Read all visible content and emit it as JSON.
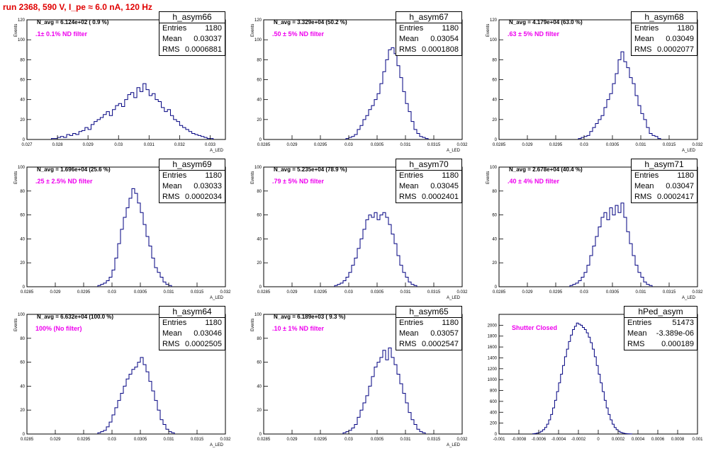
{
  "run_title": "run 2368,   590 V, I_pe ≈ 6.0 nA, 120 Hz",
  "chart_data": [
    {
      "type": "bar",
      "name": "h_asym66",
      "entries": "1180",
      "mean": "0.03037",
      "rms": "0.0006881",
      "navg": "N_avg = 6.124e+02 ( 0.9 %)",
      "filter": ".1± 0.1% ND filter",
      "xlabel": "A_LED",
      "ylabel": "Events",
      "xlim": [
        0.027,
        0.0335
      ],
      "ylim": [
        0,
        120
      ],
      "xticks": [
        0.027,
        0.028,
        0.029,
        0.03,
        0.031,
        0.032,
        0.033
      ],
      "xtick_labels": [
        "0.027",
        "0.028",
        "0.029",
        "0.03",
        "0.031",
        "0.032",
        "0.033"
      ],
      "yticks": [
        0,
        20,
        40,
        60,
        80,
        100,
        120
      ],
      "bins": {
        "start": 0.0278,
        "width": 0.0001,
        "counts": [
          1,
          1,
          2,
          3,
          2,
          5,
          4,
          6,
          5,
          8,
          9,
          12,
          10,
          15,
          18,
          20,
          22,
          25,
          28,
          24,
          30,
          34,
          36,
          33,
          40,
          45,
          47,
          42,
          52,
          48,
          56,
          50,
          44,
          46,
          40,
          38,
          32,
          28,
          30,
          24,
          20,
          18,
          14,
          12,
          10,
          8,
          6,
          5,
          4,
          3,
          2,
          1,
          1
        ]
      }
    },
    {
      "type": "bar",
      "name": "h_asym67",
      "entries": "1180",
      "mean": "0.03054",
      "rms": "0.0001808",
      "navg": "N_avg = 3.329e+04 (50.2 %)",
      "filter": ".50 ± 5% ND filter",
      "xlabel": "A_LED",
      "ylabel": "Events",
      "xlim": [
        0.0285,
        0.032
      ],
      "ylim": [
        0,
        120
      ],
      "xticks": [
        0.0285,
        0.029,
        0.0295,
        0.03,
        0.0305,
        0.031,
        0.0315,
        0.032
      ],
      "xtick_labels": [
        "0.0285",
        "0.029",
        "0.0295",
        "0.03",
        "0.0305",
        "0.031",
        "0.0315",
        "0.032"
      ],
      "yticks": [
        0,
        20,
        40,
        60,
        80,
        100,
        120
      ],
      "bins": {
        "start": 0.02995,
        "width": 5e-05,
        "counts": [
          1,
          2,
          3,
          5,
          10,
          14,
          20,
          24,
          30,
          34,
          40,
          46,
          56,
          68,
          80,
          90,
          92,
          86,
          74,
          62,
          48,
          36,
          28,
          18,
          10,
          6,
          3,
          2,
          1
        ]
      }
    },
    {
      "type": "bar",
      "name": "h_asym68",
      "entries": "1180",
      "mean": "0.03049",
      "rms": "0.0002077",
      "navg": "N_avg = 4.179e+04 (63.0 %)",
      "filter": ".63 ± 5% ND filter",
      "xlabel": "A_LED",
      "ylabel": "Events",
      "xlim": [
        0.0285,
        0.032
      ],
      "ylim": [
        0,
        120
      ],
      "xticks": [
        0.0285,
        0.029,
        0.0295,
        0.03,
        0.0305,
        0.031,
        0.0315,
        0.032
      ],
      "xtick_labels": [
        "0.0285",
        "0.029",
        "0.0295",
        "0.03",
        "0.0305",
        "0.031",
        "0.0315",
        "0.032"
      ],
      "yticks": [
        0,
        20,
        40,
        60,
        80,
        100,
        120
      ],
      "bins": {
        "start": 0.0299,
        "width": 5e-05,
        "counts": [
          1,
          2,
          3,
          4,
          8,
          12,
          16,
          20,
          24,
          32,
          40,
          46,
          56,
          66,
          80,
          88,
          78,
          72,
          62,
          56,
          44,
          34,
          26,
          20,
          12,
          6,
          4,
          3,
          1
        ]
      }
    },
    {
      "type": "bar",
      "name": "h_asym69",
      "entries": "1180",
      "mean": "0.03033",
      "rms": "0.0002034",
      "navg": "N_avg = 1.696e+04 (25.6 %)",
      "filter": ".25 ± 2.5% ND filter",
      "xlabel": "A_LED",
      "ylabel": "Events",
      "xlim": [
        0.0285,
        0.032
      ],
      "ylim": [
        0,
        100
      ],
      "xticks": [
        0.0285,
        0.029,
        0.0295,
        0.03,
        0.0305,
        0.031,
        0.0315,
        0.032
      ],
      "xtick_labels": [
        "0.0285",
        "0.029",
        "0.0295",
        "0.03",
        "0.0305",
        "0.031",
        "0.0315",
        "0.032"
      ],
      "yticks": [
        0,
        20,
        40,
        60,
        80,
        100
      ],
      "bins": {
        "start": 0.02975,
        "width": 5e-05,
        "counts": [
          1,
          2,
          3,
          5,
          8,
          14,
          24,
          36,
          48,
          58,
          66,
          74,
          82,
          78,
          70,
          62,
          52,
          42,
          34,
          24,
          16,
          12,
          8,
          4,
          2,
          1
        ]
      }
    },
    {
      "type": "bar",
      "name": "h_asym70",
      "entries": "1180",
      "mean": "0.03045",
      "rms": "0.0002401",
      "navg": "N_avg = 5.235e+04 (78.9 %)",
      "filter": ".79 ± 5% ND filter",
      "xlabel": "A_LED",
      "ylabel": "Events",
      "xlim": [
        0.0285,
        0.032
      ],
      "ylim": [
        0,
        100
      ],
      "xticks": [
        0.0285,
        0.029,
        0.0295,
        0.03,
        0.0305,
        0.031,
        0.0315,
        0.032
      ],
      "xtick_labels": [
        "0.0285",
        "0.029",
        "0.0295",
        "0.03",
        "0.0305",
        "0.031",
        "0.0315",
        "0.032"
      ],
      "yticks": [
        0,
        20,
        40,
        60,
        80,
        100
      ],
      "bins": {
        "start": 0.02975,
        "width": 5e-05,
        "counts": [
          1,
          2,
          3,
          5,
          8,
          12,
          18,
          24,
          32,
          40,
          48,
          56,
          60,
          58,
          62,
          56,
          60,
          62,
          58,
          52,
          44,
          36,
          26,
          18,
          12,
          8,
          4,
          2,
          1
        ]
      }
    },
    {
      "type": "bar",
      "name": "h_asym71",
      "entries": "1180",
      "mean": "0.03047",
      "rms": "0.0002417",
      "navg": "N_avg = 2.678e+04 (40.4 %)",
      "filter": ".40 ± 4% ND filter",
      "xlabel": "A_LED",
      "ylabel": "Events",
      "xlim": [
        0.0285,
        0.032
      ],
      "ylim": [
        0,
        100
      ],
      "xticks": [
        0.0285,
        0.029,
        0.0295,
        0.03,
        0.0305,
        0.031,
        0.0315,
        0.032
      ],
      "xtick_labels": [
        "0.0285",
        "0.029",
        "0.0295",
        "0.03",
        "0.0305",
        "0.031",
        "0.0315",
        "0.032"
      ],
      "yticks": [
        0,
        20,
        40,
        60,
        80,
        100
      ],
      "bins": {
        "start": 0.02975,
        "width": 5e-05,
        "counts": [
          1,
          2,
          3,
          5,
          8,
          12,
          18,
          26,
          34,
          42,
          50,
          58,
          62,
          56,
          66,
          60,
          68,
          62,
          70,
          58,
          46,
          36,
          26,
          18,
          12,
          8,
          4,
          2,
          1
        ]
      }
    },
    {
      "type": "bar",
      "name": "h_asym64",
      "entries": "1180",
      "mean": "0.03046",
      "rms": "0.0002505",
      "navg": "N_avg = 6.632e+04 (100.0 %)",
      "filter": "100% (No filter)",
      "xlabel": "A_LED",
      "ylabel": "Events",
      "xlim": [
        0.0285,
        0.032
      ],
      "ylim": [
        0,
        100
      ],
      "xticks": [
        0.0285,
        0.029,
        0.0295,
        0.03,
        0.0305,
        0.031,
        0.0315,
        0.032
      ],
      "xtick_labels": [
        "0.0285",
        "0.029",
        "0.0295",
        "0.03",
        "0.0305",
        "0.031",
        "0.0315",
        "0.032"
      ],
      "yticks": [
        0,
        20,
        40,
        60,
        80,
        100
      ],
      "bins": {
        "start": 0.02975,
        "width": 5e-05,
        "counts": [
          1,
          2,
          3,
          6,
          10,
          16,
          22,
          28,
          34,
          40,
          46,
          50,
          54,
          56,
          60,
          64,
          58,
          52,
          44,
          36,
          28,
          20,
          12,
          8,
          4,
          2,
          1
        ]
      }
    },
    {
      "type": "bar",
      "name": "h_asym65",
      "entries": "1180",
      "mean": "0.03057",
      "rms": "0.0002547",
      "navg": "N_avg = 6.189e+03 ( 9.3 %)",
      "filter": ".10 ± 1% ND filter",
      "xlabel": "A_LED",
      "ylabel": "Events",
      "xlim": [
        0.0285,
        0.032
      ],
      "ylim": [
        0,
        100
      ],
      "xticks": [
        0.0285,
        0.029,
        0.0295,
        0.03,
        0.0305,
        0.031,
        0.0315,
        0.032
      ],
      "xtick_labels": [
        "0.0285",
        "0.029",
        "0.0295",
        "0.03",
        "0.0305",
        "0.031",
        "0.0315",
        "0.032"
      ],
      "yticks": [
        0,
        20,
        40,
        60,
        80,
        100
      ],
      "bins": {
        "start": 0.0299,
        "width": 5e-05,
        "counts": [
          1,
          2,
          3,
          5,
          8,
          14,
          20,
          26,
          32,
          40,
          48,
          56,
          60,
          64,
          70,
          62,
          72,
          64,
          58,
          50,
          42,
          34,
          26,
          18,
          12,
          8,
          4,
          2,
          1
        ]
      }
    },
    {
      "type": "bar",
      "name": "hPed_asym",
      "entries": "51473",
      "mean": "-3.389e-06",
      "rms": "0.000189",
      "navg": "",
      "filter": "Shutter Closed",
      "xlabel": "",
      "ylabel": "",
      "xlim": [
        -0.001,
        0.001
      ],
      "ylim": [
        0,
        2200
      ],
      "xticks": [
        -0.001,
        -0.0008,
        -0.0006,
        -0.0004,
        -0.0002,
        0,
        0.0002,
        0.0004,
        0.0006,
        0.0008,
        0.001
      ],
      "xtick_labels": [
        "-0.001",
        "-0.0008",
        "-0.0006",
        "-0.0004",
        "-0.0002",
        "0",
        "0.0002",
        "0.0004",
        "0.0006",
        "0.0008",
        "0.001"
      ],
      "yticks": [
        0,
        200,
        400,
        600,
        800,
        1000,
        1200,
        1400,
        1600,
        1800,
        2000
      ],
      "bins": {
        "start": -0.00066,
        "width": 2e-05,
        "counts": [
          5,
          10,
          18,
          30,
          50,
          80,
          120,
          180,
          260,
          360,
          480,
          620,
          780,
          940,
          1100,
          1260,
          1420,
          1560,
          1700,
          1820,
          1920,
          1980,
          2040,
          2020,
          2000,
          1960,
          1920,
          1860,
          1780,
          1680,
          1560,
          1420,
          1260,
          1100,
          940,
          780,
          620,
          480,
          360,
          260,
          180,
          120,
          80,
          50,
          30,
          18,
          10,
          5,
          3,
          2
        ]
      }
    }
  ]
}
